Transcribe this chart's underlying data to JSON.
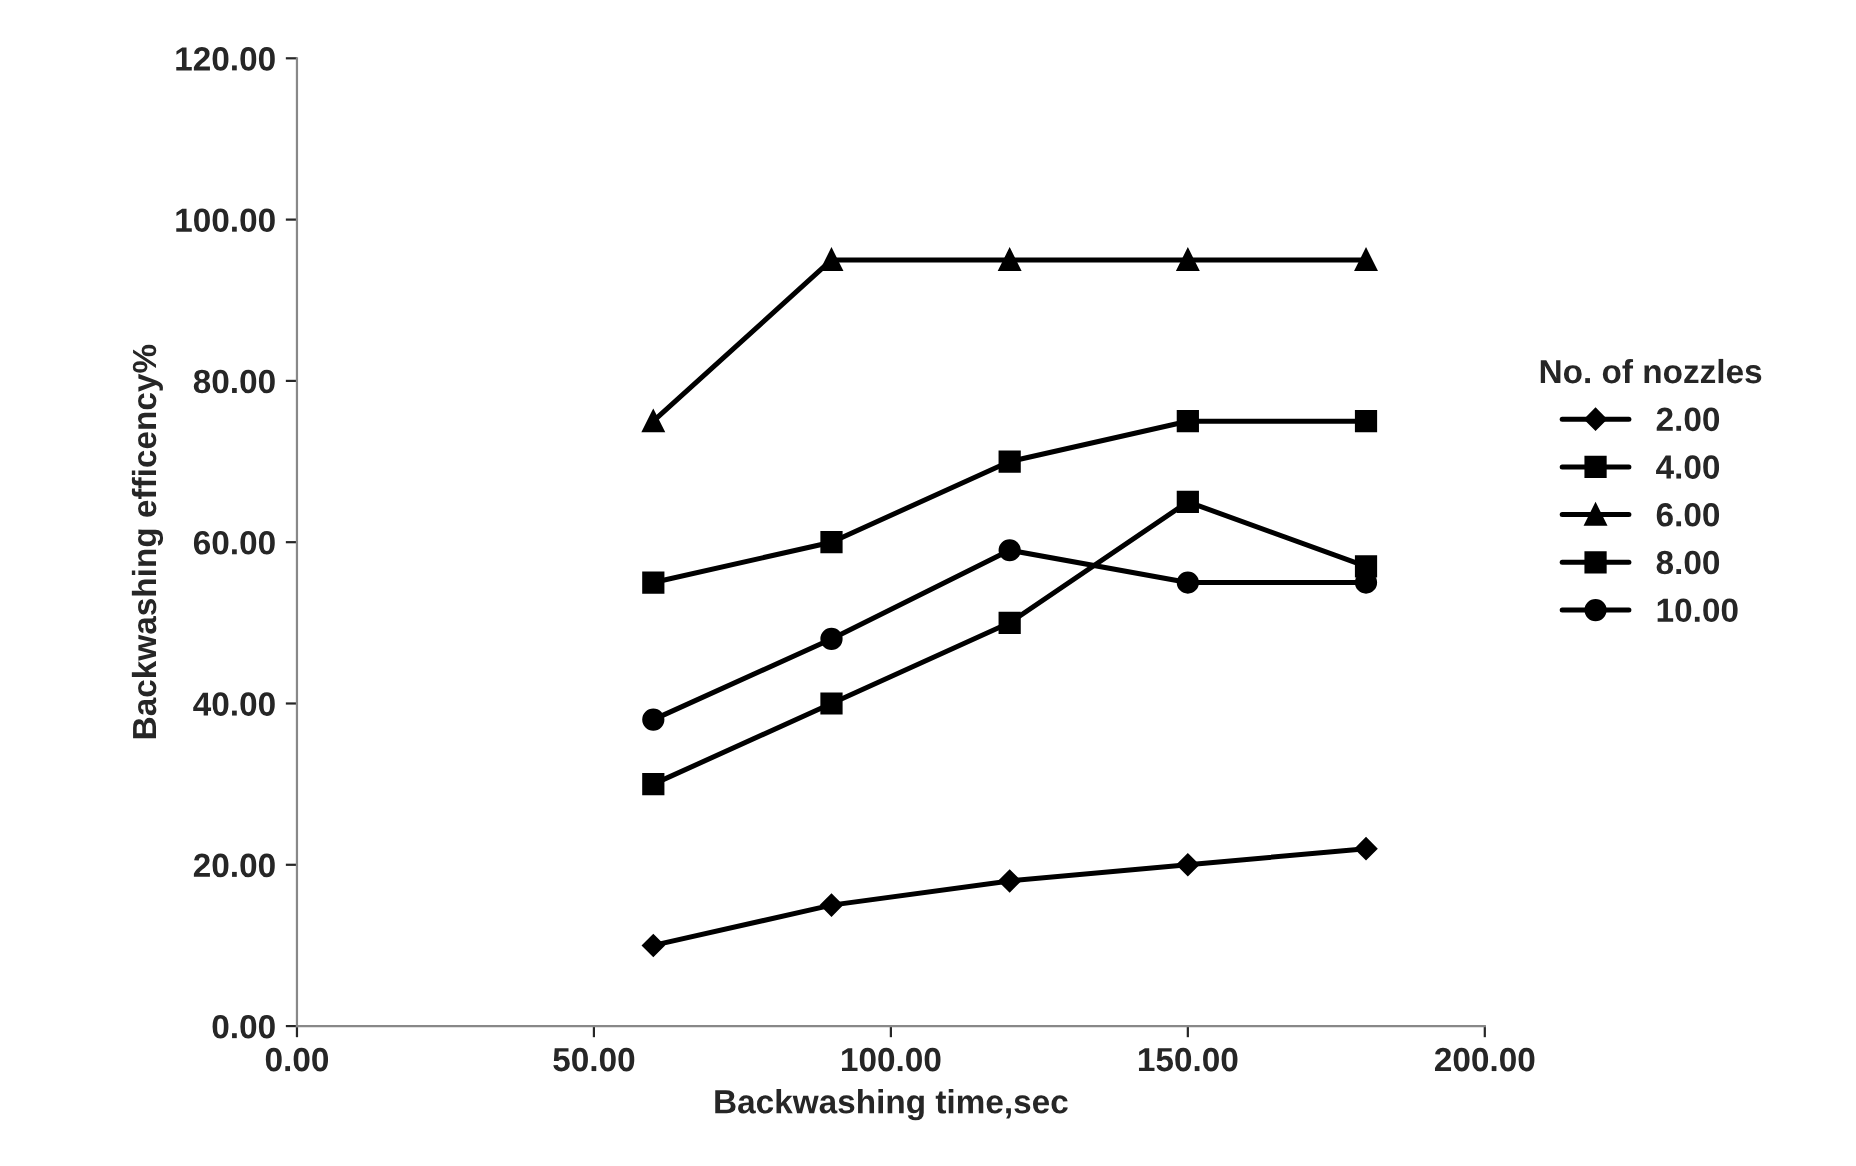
{
  "chart_data": {
    "type": "line",
    "xlabel": "Backwashing time,sec",
    "ylabel": "Backwashing efficency%",
    "legend_title": "No. of nozzles",
    "x": [
      60,
      90,
      120,
      150,
      180
    ],
    "series": [
      {
        "name": "2.00",
        "color": "#000000",
        "marker": "diamond",
        "values": [
          10,
          15,
          18,
          20,
          22
        ]
      },
      {
        "name": "4.00",
        "color": "#000000",
        "marker": "square",
        "values": [
          30,
          40,
          50,
          65,
          57
        ]
      },
      {
        "name": "6.00",
        "color": "#000000",
        "marker": "triangle",
        "values": [
          75,
          95,
          95,
          95,
          95
        ]
      },
      {
        "name": "8.00",
        "color": "#000000",
        "marker": "square",
        "values": [
          55,
          60,
          70,
          75,
          75
        ]
      },
      {
        "name": "10.00",
        "color": "#000000",
        "marker": "circle",
        "values": [
          38,
          48,
          59,
          55,
          55
        ]
      }
    ],
    "xlim": [
      0,
      200
    ],
    "xticks": [
      {
        "value": 0,
        "label": "0.00"
      },
      {
        "value": 50,
        "label": "50.00"
      },
      {
        "value": 100,
        "label": "100.00"
      },
      {
        "value": 150,
        "label": "150.00"
      },
      {
        "value": 200,
        "label": "200.00"
      }
    ],
    "ylim": [
      0,
      120
    ],
    "yticks": [
      {
        "value": 0,
        "label": "0.00"
      },
      {
        "value": 20,
        "label": "20.00"
      },
      {
        "value": 40,
        "label": "40.00"
      },
      {
        "value": 60,
        "label": "60.00"
      },
      {
        "value": 80,
        "label": "80.00"
      },
      {
        "value": 100,
        "label": "100.00"
      },
      {
        "value": 120,
        "label": "120.00"
      }
    ],
    "grid": false,
    "legend": "right",
    "line_style": "solid"
  }
}
